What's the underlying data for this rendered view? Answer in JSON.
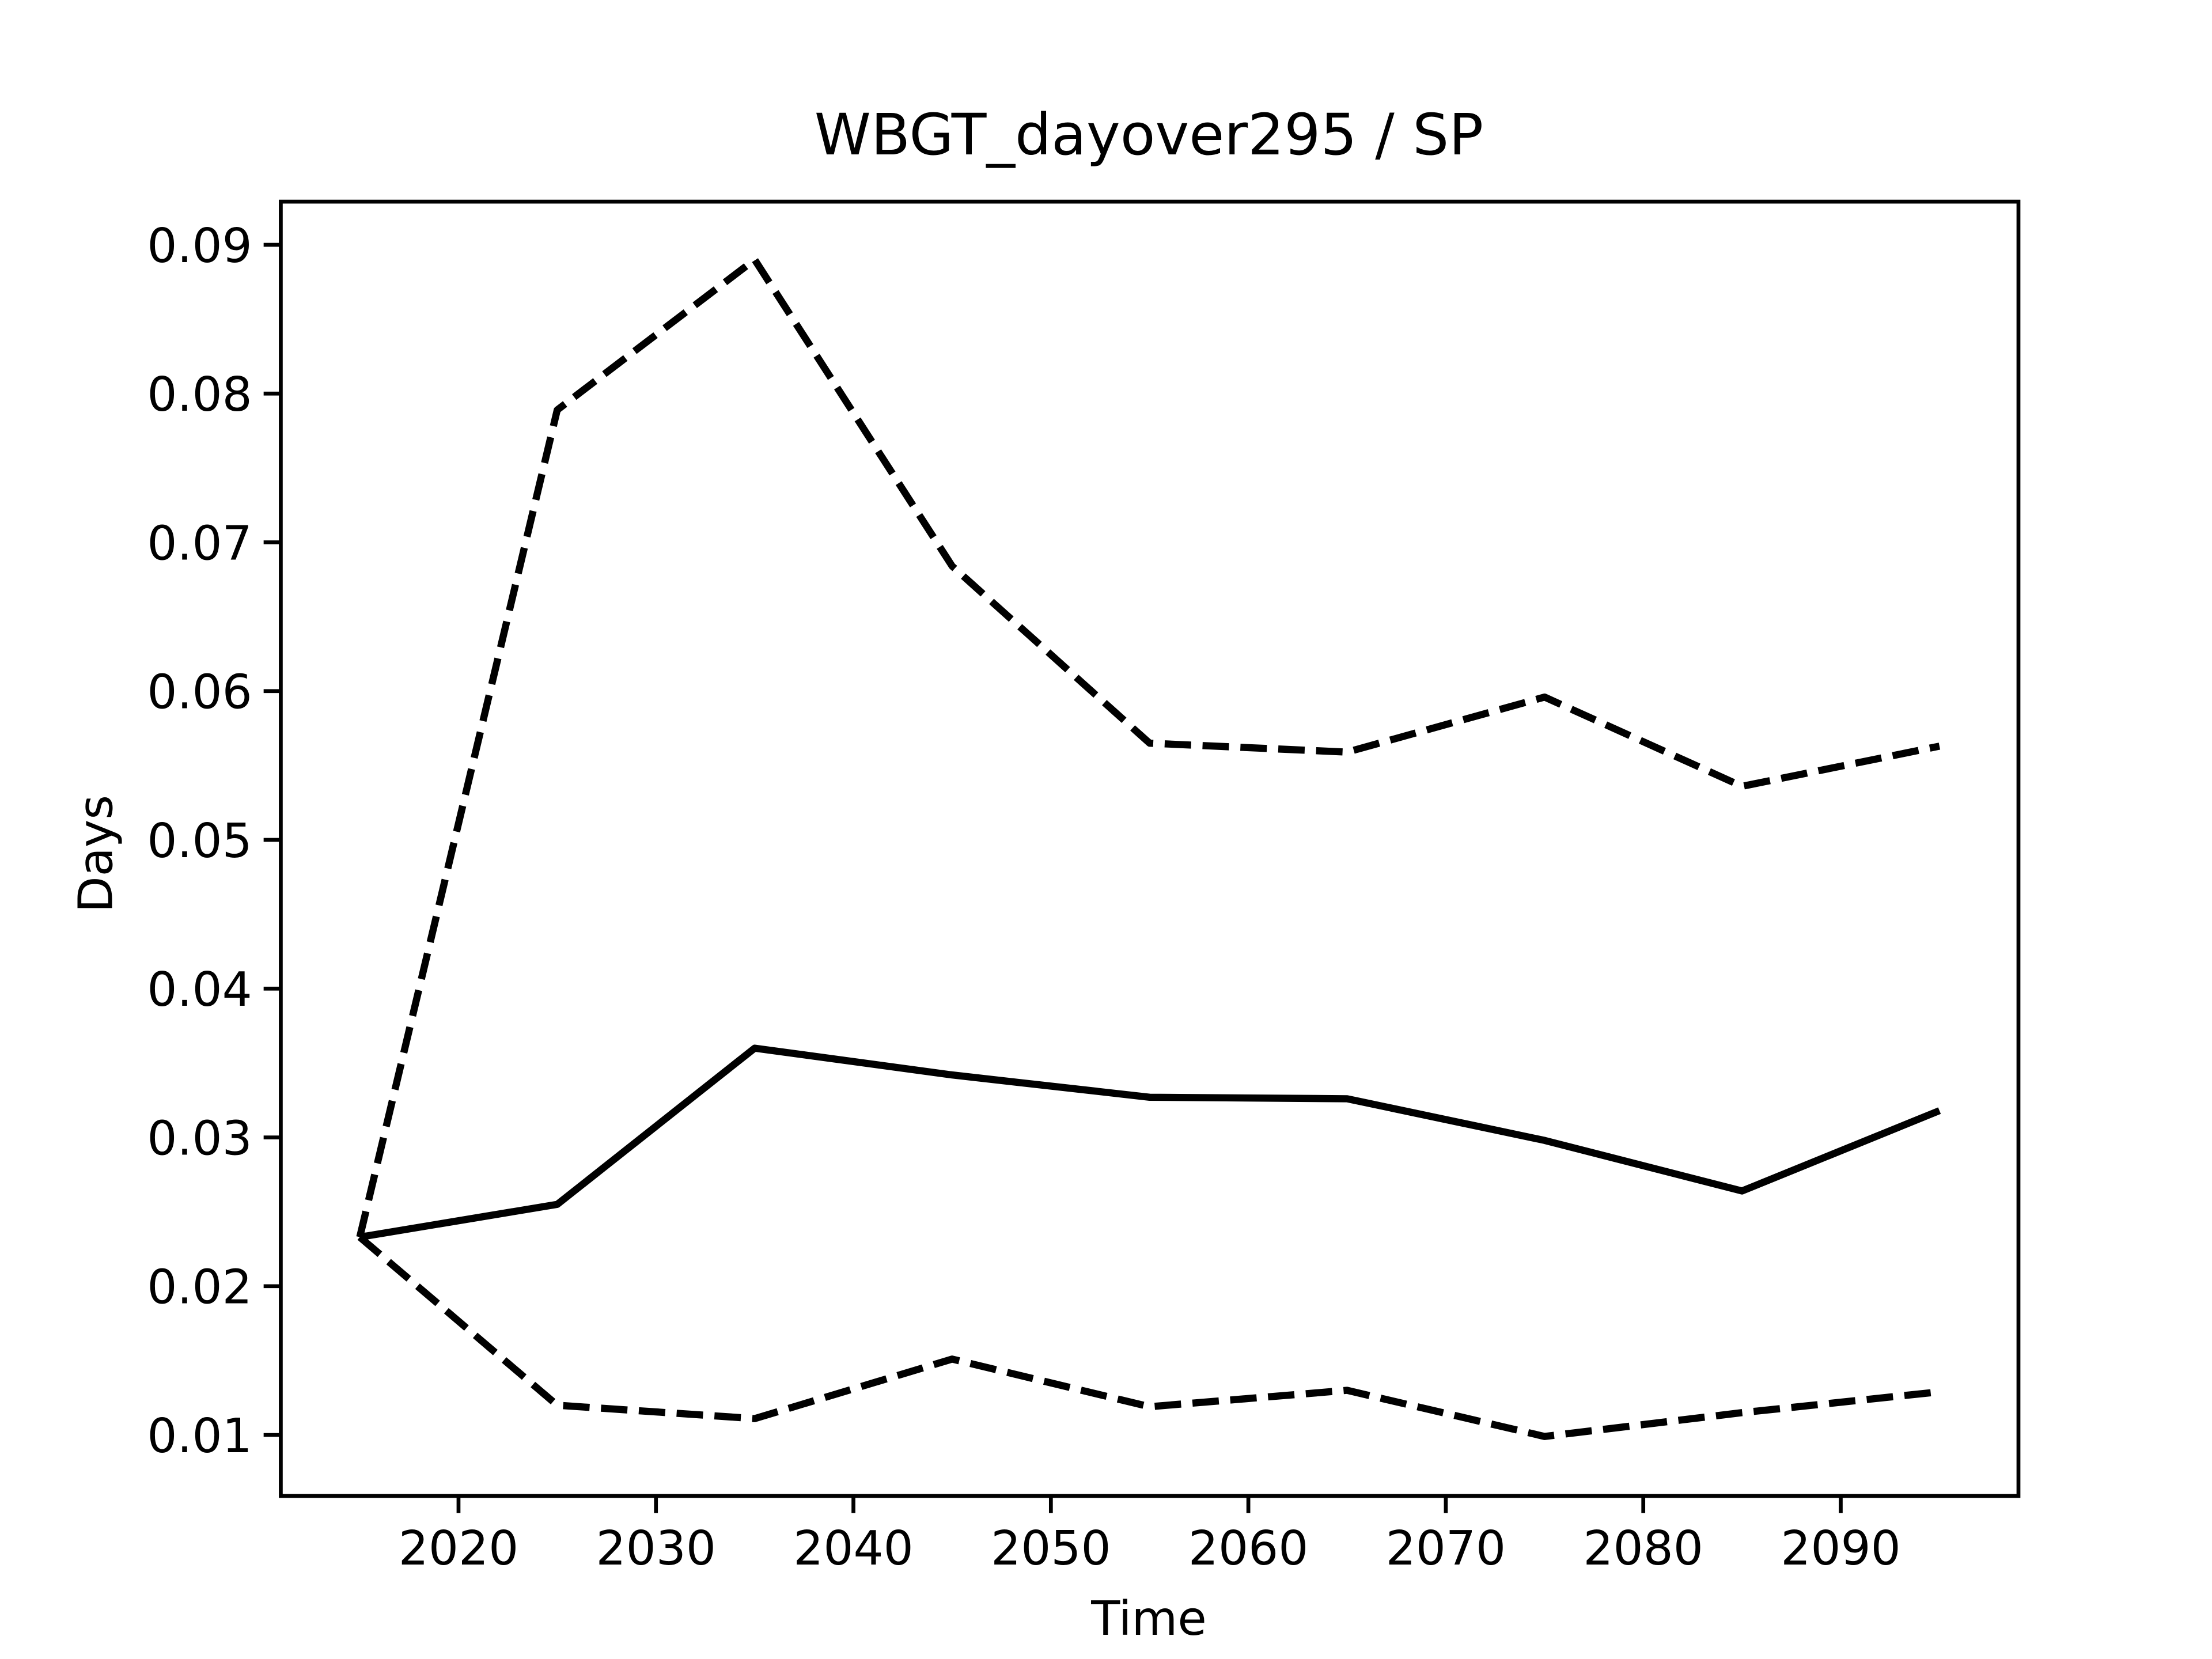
{
  "chart_data": {
    "type": "line",
    "title": "WBGT_dayover295 / SP",
    "x_label": "Time",
    "y_label": "Days",
    "x": [
      2015,
      2025,
      2035,
      2045,
      2055,
      2065,
      2075,
      2085,
      2095
    ],
    "series": [
      {
        "color": "#000000",
        "style": "solid",
        "values": [
          0.0233,
          0.0255,
          0.036,
          0.0342,
          0.0327,
          0.0326,
          0.0298,
          0.0264,
          0.0318
        ]
      },
      {
        "color": "#000000",
        "style": "dashed",
        "values": [
          0.0233,
          0.0789,
          0.089,
          0.0684,
          0.0565,
          0.0559,
          0.0596,
          0.0536,
          0.0563
        ]
      },
      {
        "color": "#000000",
        "style": "dashed",
        "values": [
          0.0233,
          0.012,
          0.0111,
          0.0151,
          0.0119,
          0.013,
          0.0099,
          0.0115,
          0.0129
        ]
      }
    ],
    "xlim": [
      2011,
      2099
    ],
    "xticks": [
      2020,
      2030,
      2040,
      2050,
      2060,
      2070,
      2080,
      2090
    ],
    "ylim": [
      0.0059,
      0.0929
    ],
    "yticks": [
      0.01,
      0.02,
      0.03,
      0.04,
      0.05,
      0.06,
      0.07,
      0.08,
      0.09
    ],
    "grid": false
  }
}
